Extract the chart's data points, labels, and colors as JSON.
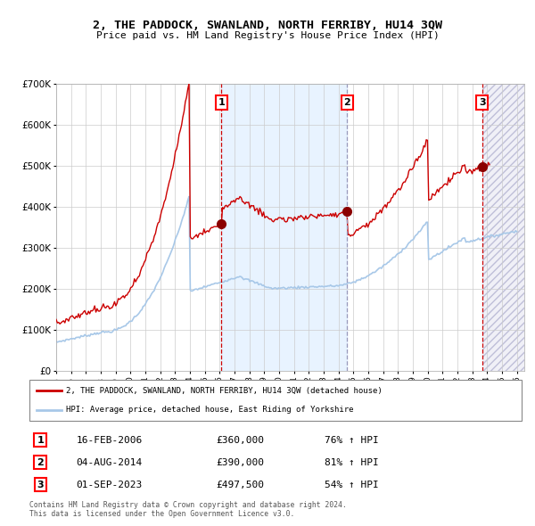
{
  "title": "2, THE PADDOCK, SWANLAND, NORTH FERRIBY, HU14 3QW",
  "subtitle": "Price paid vs. HM Land Registry's House Price Index (HPI)",
  "background_color": "#ffffff",
  "plot_bg_color": "#ffffff",
  "grid_color": "#cccccc",
  "hpi_line_color": "#a8c8e8",
  "price_line_color": "#cc0000",
  "sale_marker_color": "#8b0000",
  "dashed_red_color": "#cc0000",
  "dashed_blue_color": "#9999bb",
  "shade_color": "#ddeeff",
  "ylim": [
    0,
    700000
  ],
  "yticks": [
    0,
    100000,
    200000,
    300000,
    400000,
    500000,
    600000,
    700000
  ],
  "ytick_labels": [
    "£0",
    "£100K",
    "£200K",
    "£300K",
    "£400K",
    "£500K",
    "£600K",
    "£700K"
  ],
  "xmin_year": 1995.0,
  "xmax_year": 2026.5,
  "xticks": [
    1995,
    1996,
    1997,
    1998,
    1999,
    2000,
    2001,
    2002,
    2003,
    2004,
    2005,
    2006,
    2007,
    2008,
    2009,
    2010,
    2011,
    2012,
    2013,
    2014,
    2015,
    2016,
    2017,
    2018,
    2019,
    2020,
    2021,
    2022,
    2023,
    2024,
    2025,
    2026
  ],
  "sale1_x": 2006.12,
  "sale1_y": 360000,
  "sale2_x": 2014.58,
  "sale2_y": 390000,
  "sale3_x": 2023.67,
  "sale3_y": 497500,
  "legend_address": "2, THE PADDOCK, SWANLAND, NORTH FERRIBY, HU14 3QW (detached house)",
  "legend_hpi": "HPI: Average price, detached house, East Riding of Yorkshire",
  "table_data": [
    {
      "num": "1",
      "date": "16-FEB-2006",
      "price": "£360,000",
      "hpi": "76% ↑ HPI"
    },
    {
      "num": "2",
      "date": "04-AUG-2014",
      "price": "£390,000",
      "hpi": "81% ↑ HPI"
    },
    {
      "num": "3",
      "date": "01-SEP-2023",
      "price": "£497,500",
      "hpi": "54% ↑ HPI"
    }
  ],
  "footnote": "Contains HM Land Registry data © Crown copyright and database right 2024.\nThis data is licensed under the Open Government Licence v3.0."
}
